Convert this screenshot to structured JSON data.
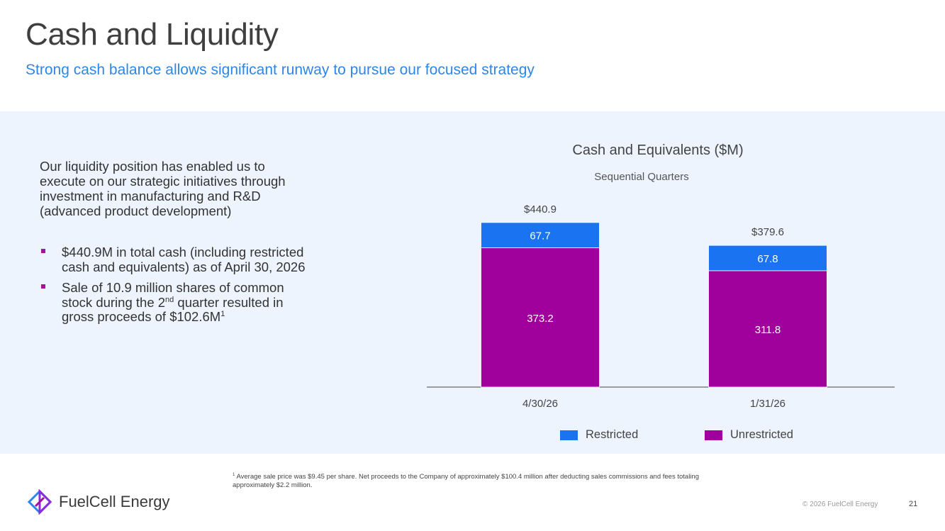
{
  "slide": {
    "title": "Cash and Liquidity",
    "subtitle": "Strong cash balance allows significant runway to pursue our focused strategy"
  },
  "left": {
    "intro": "Our liquidity position has enabled us to execute on our strategic initiatives through investment in manufacturing and R&D (advanced product development)",
    "bullet1": "$440.9M in total cash (including restricted cash and equivalents) as of April 30, 2026",
    "bullet2_a": "Sale of 10.9 million shares of common stock during the 2",
    "bullet2_sup": "nd",
    "bullet2_b": " quarter resulted in gross proceeds of $102.6M",
    "bullet2_fn": "1"
  },
  "chart_data": {
    "type": "bar",
    "stacked": true,
    "title": "Cash and Equivalents ($M)",
    "subtitle": "Sequential Quarters",
    "categories": [
      "4/30/26",
      "1/31/26"
    ],
    "totals": [
      440.9,
      379.6
    ],
    "total_labels": [
      "$440.9",
      "$379.6"
    ],
    "series": [
      {
        "name": "Unrestricted",
        "values": [
          373.2,
          311.8
        ],
        "color": "#a0009b"
      },
      {
        "name": "Restricted",
        "values": [
          67.7,
          67.8
        ],
        "color": "#1a73f0"
      }
    ],
    "ylim": [
      0,
      500
    ],
    "grid": false,
    "legend_position": "bottom"
  },
  "legend": {
    "restricted": "Restricted",
    "unrestricted": "Unrestricted",
    "restricted_color": "#1a73f0",
    "unrestricted_color": "#a0009b"
  },
  "footer": {
    "footnote_marker": "1",
    "footnote": "Average sale price was $9.45 per share. Net proceeds to the Company of approximately $100.4 million after deducting sales commissions and fees totaling approximately $2.2 million.",
    "logo_text": "FuelCell Energy",
    "logo_icon": "fuelcell-diamond-logo",
    "copyright": "© 2026 FuelCell Energy",
    "page": "21"
  }
}
